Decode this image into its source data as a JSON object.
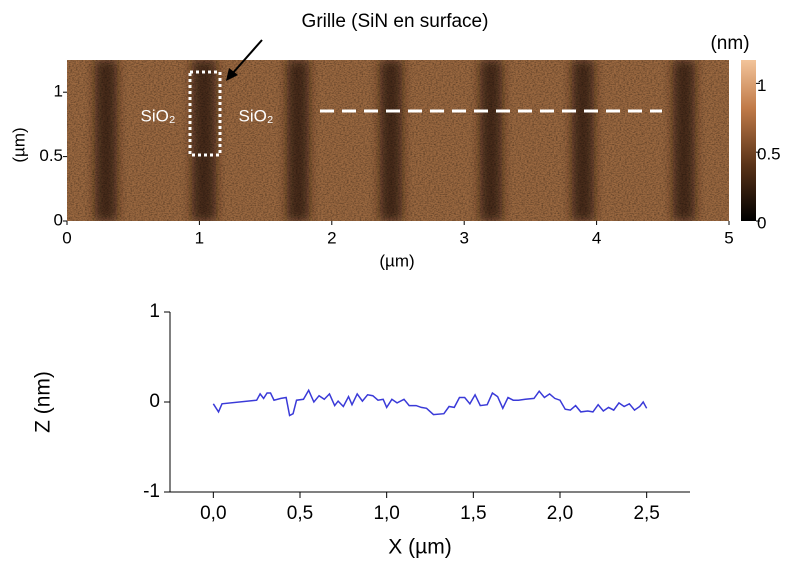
{
  "chart_data": [
    {
      "type": "image",
      "xlabel": "(µm)",
      "ylabel": "(µm)",
      "xlim": [
        0,
        5
      ],
      "xticks": [
        0,
        1,
        2,
        3,
        4,
        5
      ],
      "ylim": [
        0,
        1.25
      ],
      "yticks": [
        0,
        0.5,
        1
      ],
      "colorbar": {
        "label": "(nm)",
        "lim": [
          0,
          1.17
        ],
        "ticks": [
          0,
          0.5,
          1
        ]
      },
      "annotations": [
        "Grille (SiN en surface)",
        "SiO₂",
        "SiO₂"
      ]
    },
    {
      "type": "line",
      "xlabel": "X (µm)",
      "ylabel": "Z (nm)",
      "xlim": [
        -0.25,
        2.75
      ],
      "xticks": [
        {
          "value": 0,
          "label": "0,0"
        },
        {
          "value": 0.5,
          "label": "0,5"
        },
        {
          "value": 1,
          "label": "1,0"
        },
        {
          "value": 1.5,
          "label": "1,5"
        },
        {
          "value": 2,
          "label": "2,0"
        },
        {
          "value": 2.5,
          "label": "2,5"
        }
      ],
      "ylim": [
        -1,
        1
      ],
      "yticks": [
        -1,
        0,
        1
      ],
      "series": [
        {
          "color": "#3a3ad8",
          "x": [
            0.0,
            0.03,
            0.05,
            0.25,
            0.27,
            0.29,
            0.31,
            0.33,
            0.35,
            0.39,
            0.42,
            0.44,
            0.46,
            0.48,
            0.52,
            0.55,
            0.58,
            0.61,
            0.64,
            0.67,
            0.7,
            0.72,
            0.75,
            0.78,
            0.8,
            0.83,
            0.86,
            0.89,
            0.92,
            0.95,
            0.98,
            1.0,
            1.03,
            1.06,
            1.1,
            1.13,
            1.17,
            1.2,
            1.23,
            1.27,
            1.33,
            1.36,
            1.39,
            1.42,
            1.45,
            1.48,
            1.51,
            1.54,
            1.58,
            1.61,
            1.64,
            1.67,
            1.7,
            1.73,
            1.76,
            1.8,
            1.85,
            1.88,
            1.91,
            1.94,
            1.97,
            2.0,
            2.03,
            2.06,
            2.09,
            2.12,
            2.16,
            2.19,
            2.22,
            2.25,
            2.28,
            2.31,
            2.34,
            2.37,
            2.4,
            2.43,
            2.46,
            2.48,
            2.5
          ],
          "values": [
            -0.02,
            -0.11,
            -0.02,
            0.02,
            0.09,
            0.04,
            0.1,
            0.1,
            0.02,
            0.04,
            0.05,
            -0.15,
            -0.13,
            0.02,
            0.03,
            0.13,
            0.0,
            0.07,
            0.03,
            0.09,
            -0.04,
            0.01,
            -0.05,
            0.06,
            -0.03,
            0.09,
            0.01,
            0.08,
            0.07,
            0.02,
            0.03,
            -0.06,
            0.03,
            -0.01,
            0.03,
            -0.04,
            -0.04,
            -0.06,
            -0.07,
            -0.14,
            -0.13,
            -0.05,
            -0.06,
            0.05,
            0.05,
            -0.02,
            0.08,
            -0.04,
            -0.03,
            0.1,
            0.06,
            -0.07,
            0.05,
            0.02,
            0.02,
            0.03,
            0.04,
            0.12,
            0.05,
            0.09,
            0.04,
            0.02,
            -0.08,
            -0.09,
            -0.04,
            -0.11,
            -0.1,
            -0.11,
            -0.03,
            -0.1,
            -0.06,
            -0.09,
            -0.01,
            -0.05,
            -0.02,
            -0.09,
            -0.05,
            0.0,
            -0.07
          ]
        }
      ]
    }
  ]
}
